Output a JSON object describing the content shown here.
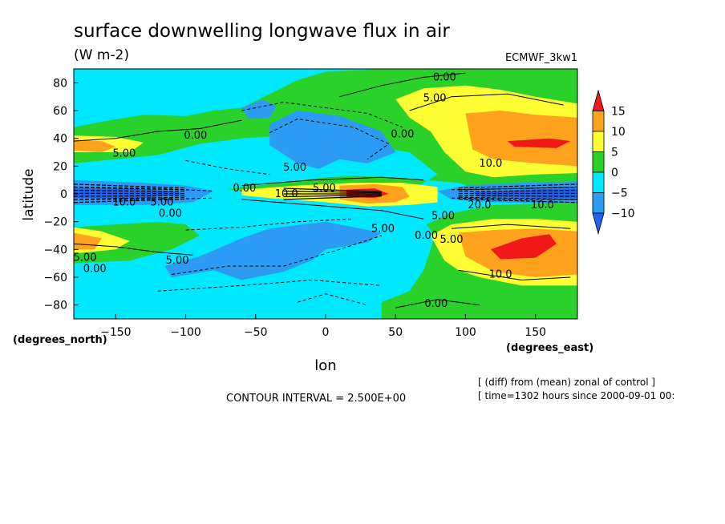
{
  "chart_data": {
    "type": "contour",
    "title": "surface downwelling longwave flux in air",
    "units": "(W m-2)",
    "model": "ECMWF_3kw1",
    "xlabel": "lon",
    "ylabel": "latitude",
    "x_unit": "(degrees_east)",
    "y_unit": "(degrees_north)",
    "xlim": [
      -180,
      180
    ],
    "ylim": [
      -90,
      90
    ],
    "x_ticks": [
      -150,
      -100,
      -50,
      0,
      50,
      100,
      150
    ],
    "y_ticks": [
      -80,
      -60,
      -40,
      -20,
      0,
      20,
      40,
      60,
      80
    ],
    "contour_interval": "CONTOUR INTERVAL = 2.500E+00",
    "notes": [
      "[ (diff) from (mean) zonal of control ]",
      "[ time=1302 hours since 2000-09-01 00:"
    ],
    "colorbar": {
      "levels": [
        -10,
        -5,
        0,
        5,
        10,
        15
      ],
      "tick_labels": [
        "15",
        "10",
        "5",
        "0",
        "−5",
        "−10"
      ],
      "colors": [
        "#1e64f0",
        "#2b9bf4",
        "#00e8ff",
        "#2bd12b",
        "#ffff33",
        "#ffa31f",
        "#f01818"
      ]
    },
    "contour_labels": [
      {
        "text": "0.00",
        "lon": 85,
        "lat": 84
      },
      {
        "text": "5.00",
        "lon": 78,
        "lat": 69
      },
      {
        "text": "0.00",
        "lon": 55,
        "lat": 43
      },
      {
        "text": "0.00",
        "lon": -93,
        "lat": 42
      },
      {
        "text": "5.00",
        "lon": -144,
        "lat": 29
      },
      {
        "text": "5.00",
        "lon": -22,
        "lat": 19
      },
      {
        "text": "10.0",
        "lon": 118,
        "lat": 22
      },
      {
        "text": "0.00",
        "lon": -58,
        "lat": 4
      },
      {
        "text": "10.0",
        "lon": -28,
        "lat": 0
      },
      {
        "text": "5.00",
        "lon": -1,
        "lat": 4
      },
      {
        "text": "10.0",
        "lon": -144,
        "lat": -6
      },
      {
        "text": "5.00",
        "lon": -117,
        "lat": -6
      },
      {
        "text": "0.00",
        "lon": -111,
        "lat": -14
      },
      {
        "text": "20.0",
        "lon": 110,
        "lat": -8
      },
      {
        "text": "10.0",
        "lon": 155,
        "lat": -8
      },
      {
        "text": "5.00",
        "lon": 84,
        "lat": -16
      },
      {
        "text": "5.00",
        "lon": 41,
        "lat": -25
      },
      {
        "text": "0.00",
        "lon": 72,
        "lat": -30
      },
      {
        "text": "5.00",
        "lon": 90,
        "lat": -33
      },
      {
        "text": "5.00",
        "lon": -172,
        "lat": -46
      },
      {
        "text": "0.00",
        "lon": -165,
        "lat": -54
      },
      {
        "text": "5.00",
        "lon": -106,
        "lat": -48
      },
      {
        "text": "10.0",
        "lon": 125,
        "lat": -58
      },
      {
        "text": "0.00",
        "lon": 79,
        "lat": -79
      }
    ]
  }
}
